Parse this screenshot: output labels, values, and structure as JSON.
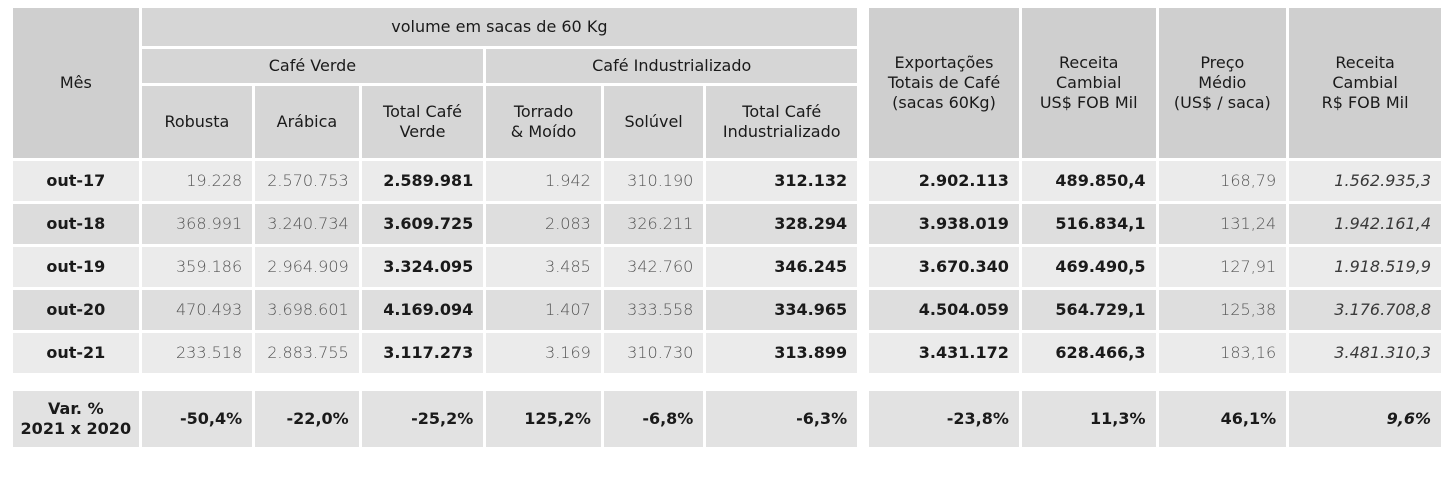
{
  "header": {
    "mes": "Mês",
    "volume_title": "volume em sacas de 60 Kg",
    "cafe_verde": "Café Verde",
    "cafe_industrializado": "Café Industrializado",
    "robusta": "Robusta",
    "arabica": "Arábica",
    "total_cafe_verde_l1": "Total Café",
    "total_cafe_verde_l2": "Verde",
    "torrado_l1": "Torrado",
    "torrado_l2": "& Moído",
    "soluvel": "Solúvel",
    "total_ind_l1": "Total Café",
    "total_ind_l2": "Industrializado",
    "exportacoes_l1": "Exportações",
    "exportacoes_l2": "Totais de Café",
    "exportacoes_l3": "(sacas 60Kg)",
    "receita_usd_l1": "Receita",
    "receita_usd_l2": "Cambial",
    "receita_usd_l3": "US$ FOB Mil",
    "preco_l1": "Preço",
    "preco_l2": "Médio",
    "preco_l3": "(US$ / saca)",
    "receita_brl_l1": "Receita",
    "receita_brl_l2": "Cambial",
    "receita_brl_l3": "R$ FOB Mil"
  },
  "rows": [
    {
      "mes": "out-17",
      "robusta": "19.228",
      "arabica": "2.570.753",
      "total_verde": "2.589.981",
      "torrado": "1.942",
      "soluvel": "310.190",
      "total_ind": "312.132",
      "exportacoes": "2.902.113",
      "receita_usd": "489.850,4",
      "preco": "168,79",
      "receita_brl": "1.562.935,3"
    },
    {
      "mes": "out-18",
      "robusta": "368.991",
      "arabica": "3.240.734",
      "total_verde": "3.609.725",
      "torrado": "2.083",
      "soluvel": "326.211",
      "total_ind": "328.294",
      "exportacoes": "3.938.019",
      "receita_usd": "516.834,1",
      "preco": "131,24",
      "receita_brl": "1.942.161,4"
    },
    {
      "mes": "out-19",
      "robusta": "359.186",
      "arabica": "2.964.909",
      "total_verde": "3.324.095",
      "torrado": "3.485",
      "soluvel": "342.760",
      "total_ind": "346.245",
      "exportacoes": "3.670.340",
      "receita_usd": "469.490,5",
      "preco": "127,91",
      "receita_brl": "1.918.519,9"
    },
    {
      "mes": "out-20",
      "robusta": "470.493",
      "arabica": "3.698.601",
      "total_verde": "4.169.094",
      "torrado": "1.407",
      "soluvel": "333.558",
      "total_ind": "334.965",
      "exportacoes": "4.504.059",
      "receita_usd": "564.729,1",
      "preco": "125,38",
      "receita_brl": "3.176.708,8"
    },
    {
      "mes": "out-21",
      "robusta": "233.518",
      "arabica": "2.883.755",
      "total_verde": "3.117.273",
      "torrado": "3.169",
      "soluvel": "310.730",
      "total_ind": "313.899",
      "exportacoes": "3.431.172",
      "receita_usd": "628.466,3",
      "preco": "183,16",
      "receita_brl": "3.481.310,3"
    }
  ],
  "variation": {
    "label_l1": "Var. %",
    "label_l2": "2021 x 2020",
    "robusta": "-50,4%",
    "arabica": "-22,0%",
    "total_verde": "-25,2%",
    "torrado": "125,2%",
    "soluvel": "-6,8%",
    "total_ind": "-6,3%",
    "exportacoes": "-23,8%",
    "receita_usd": "11,3%",
    "preco": "46,1%",
    "receita_brl": "9,6%"
  }
}
